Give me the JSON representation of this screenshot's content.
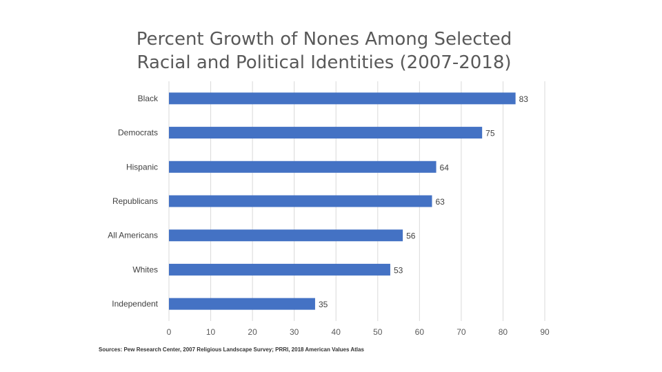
{
  "chart_data": {
    "type": "bar",
    "orientation": "horizontal",
    "title_lines": [
      "Percent Growth of Nones Among Selected",
      "Racial and Political Identities (2007-2018)"
    ],
    "categories": [
      "Black",
      "Democrats",
      "Hispanic",
      "Republicans",
      "All Americans",
      "Whites",
      "Independent"
    ],
    "values": [
      83,
      75,
      64,
      63,
      56,
      53,
      35
    ],
    "xlim": [
      0,
      90
    ],
    "xticks": [
      0,
      10,
      20,
      30,
      40,
      50,
      60,
      70,
      80,
      90
    ],
    "xlabel": "",
    "ylabel": "",
    "grid": "vertical",
    "data_labels": true,
    "bar_color": "#4472C4",
    "grid_color": "#D9D9D9"
  },
  "footer": {
    "sources": "Sources: Pew Research Center, 2007 Religious Landscape Survey; PRRI, 2018 American Values Atlas"
  }
}
